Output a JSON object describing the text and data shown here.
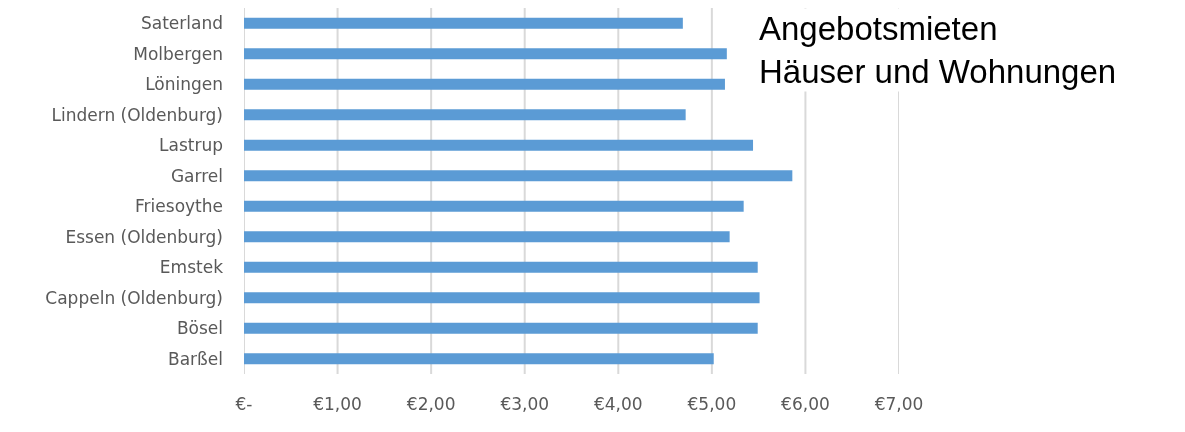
{
  "chart_data": {
    "type": "bar",
    "orientation": "horizontal",
    "title": "Angebotsmieten\nHäuser und Wohnungen",
    "categories": [
      "Saterland",
      "Molbergen",
      "Löningen",
      "Lindern (Oldenburg)",
      "Lastrup",
      "Garrel",
      "Friesoythe",
      "Essen (Oldenburg)",
      "Emstek",
      "Cappeln (Oldenburg)",
      "Bösel",
      "Barßel"
    ],
    "values": [
      4.69,
      5.16,
      5.14,
      4.72,
      5.44,
      5.86,
      5.34,
      5.19,
      5.49,
      5.51,
      5.49,
      5.02
    ],
    "color": "#5b9bd5",
    "xlim": [
      0,
      7
    ],
    "xticks": [
      {
        "value": 0,
        "label": "€-"
      },
      {
        "value": 1,
        "label": "€1,00"
      },
      {
        "value": 2,
        "label": "€2,00"
      },
      {
        "value": 3,
        "label": "€3,00"
      },
      {
        "value": 4,
        "label": "€4,00"
      },
      {
        "value": 5,
        "label": "€5,00"
      },
      {
        "value": 6,
        "label": "€6,00"
      },
      {
        "value": 7,
        "label": "€7,00"
      }
    ],
    "grid": "x"
  }
}
